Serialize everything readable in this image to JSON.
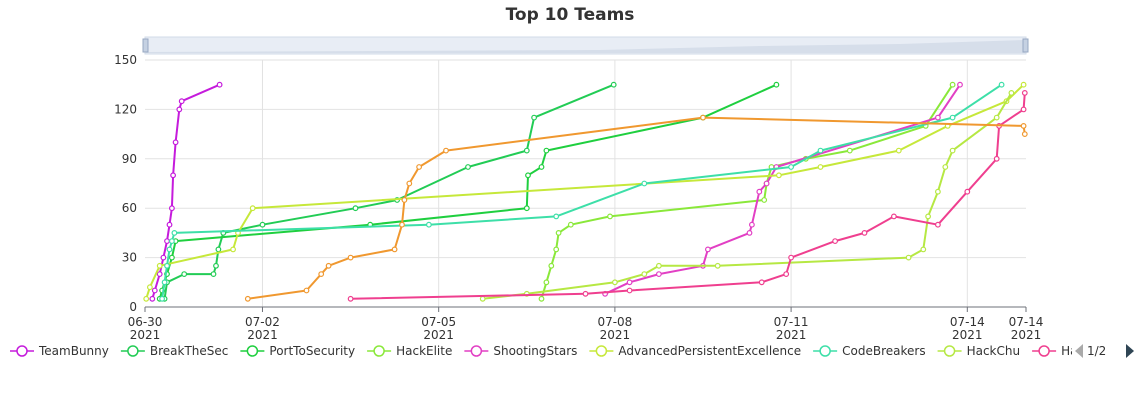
{
  "chart_data": {
    "type": "line",
    "title": "Top 10 Teams",
    "x_ticks": [
      {
        "date": "2021-06-30",
        "day": "06-30",
        "year": "2021"
      },
      {
        "date": "2021-07-02",
        "day": "07-02",
        "year": "2021"
      },
      {
        "date": "2021-07-05",
        "day": "07-05",
        "year": "2021"
      },
      {
        "date": "2021-07-08",
        "day": "07-08",
        "year": "2021"
      },
      {
        "date": "2021-07-11",
        "day": "07-11",
        "year": "2021"
      },
      {
        "date": "2021-07-14",
        "day": "07-14",
        "year": "2021"
      }
    ],
    "x_ticks_right": [
      {
        "date": "2021-07-14 23:59",
        "day": "07-14",
        "year": "2021"
      }
    ],
    "xlim": [
      "2021-06-30 00:00",
      "2021-07-14 23:59"
    ],
    "ylim": [
      0,
      150
    ],
    "y_ticks": [
      0,
      30,
      60,
      90,
      120,
      150
    ],
    "grid": true,
    "legend_position": "bottom",
    "legend_page": "1/2",
    "series": [
      {
        "name": "TeamBunny",
        "color": "#c51bdc",
        "points": [
          [
            "2021-06-30 03:00",
            5
          ],
          [
            "2021-06-30 04:00",
            10
          ],
          [
            "2021-06-30 06:00",
            20
          ],
          [
            "2021-06-30 07:30",
            30
          ],
          [
            "2021-06-30 09:00",
            40
          ],
          [
            "2021-06-30 10:00",
            50
          ],
          [
            "2021-06-30 11:00",
            60
          ],
          [
            "2021-06-30 11:30",
            80
          ],
          [
            "2021-06-30 12:30",
            100
          ],
          [
            "2021-06-30 14:00",
            120
          ],
          [
            "2021-06-30 15:00",
            125
          ],
          [
            "2021-07-01 06:30",
            135
          ]
        ]
      },
      {
        "name": "BreakTheSec",
        "color": "#22cc55",
        "points": [
          [
            "2021-06-30 08:00",
            5
          ],
          [
            "2021-06-30 09:00",
            15
          ],
          [
            "2021-06-30 16:00",
            20
          ],
          [
            "2021-07-01 04:00",
            20
          ],
          [
            "2021-07-01 05:00",
            25
          ],
          [
            "2021-07-01 06:00",
            35
          ],
          [
            "2021-07-01 08:00",
            45
          ],
          [
            "2021-07-02 00:00",
            50
          ],
          [
            "2021-07-03 14:00",
            60
          ],
          [
            "2021-07-04 07:00",
            65
          ],
          [
            "2021-07-05 12:00",
            85
          ],
          [
            "2021-07-06 12:00",
            95
          ],
          [
            "2021-07-06 15:00",
            115
          ],
          [
            "2021-07-07 23:30",
            135
          ]
        ]
      },
      {
        "name": "PortToSecurity",
        "color": "#1fcf3f",
        "points": [
          [
            "2021-06-30 06:00",
            5
          ],
          [
            "2021-06-30 07:00",
            10
          ],
          [
            "2021-06-30 09:00",
            20
          ],
          [
            "2021-06-30 11:00",
            30
          ],
          [
            "2021-06-30 12:30",
            40
          ],
          [
            "2021-07-03 20:00",
            50
          ],
          [
            "2021-07-06 12:00",
            60
          ],
          [
            "2021-07-06 12:30",
            80
          ],
          [
            "2021-07-06 18:00",
            85
          ],
          [
            "2021-07-06 20:00",
            95
          ],
          [
            "2021-07-09 12:00",
            115
          ],
          [
            "2021-07-10 18:00",
            135
          ]
        ]
      },
      {
        "name": "HackElite",
        "color": "#8ae83a",
        "points": [
          [
            "2021-07-06 18:00",
            5
          ],
          [
            "2021-07-06 20:00",
            15
          ],
          [
            "2021-07-06 22:00",
            25
          ],
          [
            "2021-07-07 00:00",
            35
          ],
          [
            "2021-07-07 01:00",
            45
          ],
          [
            "2021-07-07 06:00",
            50
          ],
          [
            "2021-07-07 22:00",
            55
          ],
          [
            "2021-07-10 13:00",
            65
          ],
          [
            "2021-07-10 14:00",
            75
          ],
          [
            "2021-07-10 16:00",
            85
          ],
          [
            "2021-07-11 06:00",
            90
          ],
          [
            "2021-07-12 00:00",
            95
          ],
          [
            "2021-07-13 07:00",
            110
          ],
          [
            "2021-07-13 18:00",
            135
          ]
        ]
      },
      {
        "name": "ShootingStars",
        "color": "#e23fc4",
        "points": [
          [
            "2021-07-07 20:00",
            8
          ],
          [
            "2021-07-08 06:00",
            15
          ],
          [
            "2021-07-08 18:00",
            20
          ],
          [
            "2021-07-09 12:00",
            25
          ],
          [
            "2021-07-09 14:00",
            35
          ],
          [
            "2021-07-10 07:00",
            45
          ],
          [
            "2021-07-10 08:00",
            50
          ],
          [
            "2021-07-10 11:00",
            70
          ],
          [
            "2021-07-10 14:00",
            75
          ],
          [
            "2021-07-10 18:00",
            85
          ],
          [
            "2021-07-13 12:00",
            115
          ],
          [
            "2021-07-13 21:00",
            135
          ]
        ]
      },
      {
        "name": "AdvancedPersistentExcellence",
        "color": "#c6e83a",
        "points": [
          [
            "2021-06-30 00:30",
            5
          ],
          [
            "2021-06-30 02:00",
            12
          ],
          [
            "2021-06-30 06:00",
            25
          ],
          [
            "2021-07-01 12:00",
            35
          ],
          [
            "2021-07-01 14:00",
            45
          ],
          [
            "2021-07-01 20:00",
            60
          ],
          [
            "2021-07-10 19:00",
            80
          ],
          [
            "2021-07-11 12:00",
            85
          ],
          [
            "2021-07-12 20:00",
            95
          ],
          [
            "2021-07-13 16:00",
            110
          ],
          [
            "2021-07-14 16:00",
            125
          ],
          [
            "2021-07-14 23:00",
            135
          ]
        ]
      },
      {
        "name": "CodeBreakers",
        "color": "#3ddfa8",
        "points": [
          [
            "2021-06-30 07:00",
            5
          ],
          [
            "2021-06-30 08:00",
            15
          ],
          [
            "2021-06-30 09:00",
            25
          ],
          [
            "2021-06-30 10:00",
            35
          ],
          [
            "2021-06-30 11:00",
            40
          ],
          [
            "2021-06-30 12:00",
            45
          ],
          [
            "2021-07-04 20:00",
            50
          ],
          [
            "2021-07-07 00:00",
            55
          ],
          [
            "2021-07-08 12:00",
            75
          ],
          [
            "2021-07-11 00:00",
            85
          ],
          [
            "2021-07-11 12:00",
            95
          ],
          [
            "2021-07-13 18:00",
            115
          ],
          [
            "2021-07-14 14:00",
            135
          ]
        ]
      },
      {
        "name": "HackChu",
        "color": "#b6e843",
        "points": [
          [
            "2021-07-05 18:00",
            5
          ],
          [
            "2021-07-06 12:00",
            8
          ],
          [
            "2021-07-08 00:00",
            15
          ],
          [
            "2021-07-08 12:00",
            20
          ],
          [
            "2021-07-08 18:00",
            25
          ],
          [
            "2021-07-09 18:00",
            25
          ],
          [
            "2021-07-13 00:00",
            30
          ],
          [
            "2021-07-13 06:00",
            35
          ],
          [
            "2021-07-13 08:00",
            55
          ],
          [
            "2021-07-13 12:00",
            70
          ],
          [
            "2021-07-13 15:00",
            85
          ],
          [
            "2021-07-13 18:00",
            95
          ],
          [
            "2021-07-14 12:00",
            115
          ],
          [
            "2021-07-14 18:00",
            130
          ]
        ]
      },
      {
        "name": "HackingBunny",
        "color": "#ef3f8f",
        "points": [
          [
            "2021-07-03 12:00",
            5
          ],
          [
            "2021-07-07 12:00",
            8
          ],
          [
            "2021-07-08 06:00",
            10
          ],
          [
            "2021-07-10 12:00",
            15
          ],
          [
            "2021-07-10 22:00",
            20
          ],
          [
            "2021-07-11 00:00",
            30
          ],
          [
            "2021-07-11 18:00",
            40
          ],
          [
            "2021-07-12 06:00",
            45
          ],
          [
            "2021-07-12 18:00",
            55
          ],
          [
            "2021-07-13 12:00",
            50
          ],
          [
            "2021-07-14 00:00",
            70
          ],
          [
            "2021-07-14 12:00",
            90
          ],
          [
            "2021-07-14 13:00",
            110
          ],
          [
            "2021-07-14 23:00",
            120
          ],
          [
            "2021-07-14 23:30",
            130
          ]
        ]
      },
      {
        "name": "",
        "color": "#f0982f",
        "points": [
          [
            "2021-07-01 18:00",
            5
          ],
          [
            "2021-07-02 18:00",
            10
          ],
          [
            "2021-07-03 00:00",
            20
          ],
          [
            "2021-07-03 03:00",
            25
          ],
          [
            "2021-07-03 12:00",
            30
          ],
          [
            "2021-07-04 06:00",
            35
          ],
          [
            "2021-07-04 09:00",
            50
          ],
          [
            "2021-07-04 10:00",
            65
          ],
          [
            "2021-07-04 12:00",
            75
          ],
          [
            "2021-07-04 16:00",
            85
          ],
          [
            "2021-07-05 03:00",
            95
          ],
          [
            "2021-07-09 12:00",
            115
          ],
          [
            "2021-07-14 23:00",
            110
          ],
          [
            "2021-07-14 23:30",
            105
          ]
        ]
      }
    ]
  }
}
